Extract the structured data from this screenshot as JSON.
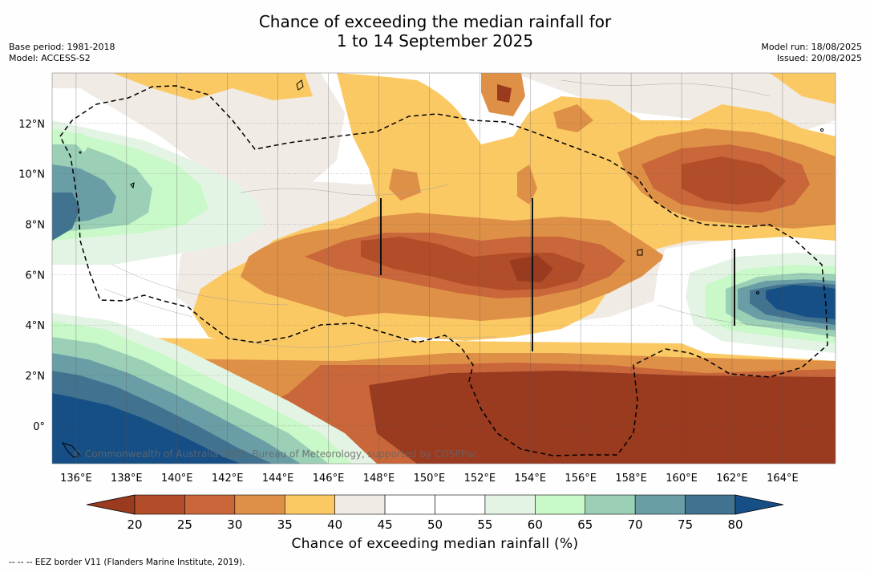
{
  "header": {
    "title_line1": "Chance of exceeding the median rainfall for",
    "title_line2": "1 to 14 September 2025",
    "base_period": "Base period: 1981-2018",
    "model": "Model: ACCESS-S2",
    "model_run": "Model run: 18/08/2025",
    "issued": "Issued: 20/08/2025"
  },
  "map": {
    "lon_labels": [
      "136°E",
      "138°E",
      "140°E",
      "142°E",
      "144°E",
      "146°E",
      "148°E",
      "150°E",
      "152°E",
      "154°E",
      "156°E",
      "158°E",
      "160°E",
      "162°E",
      "164°E"
    ],
    "lon_values": [
      136,
      138,
      140,
      142,
      144,
      146,
      148,
      150,
      152,
      154,
      156,
      158,
      160,
      162,
      164
    ],
    "lat_labels": [
      "12°N",
      "10°N",
      "8°N",
      "6°N",
      "4°N",
      "2°N",
      "0°"
    ],
    "lat_values": [
      12,
      10,
      8,
      6,
      4,
      2,
      0
    ],
    "lon_range": [
      135.05,
      166.1
    ],
    "lat_range": [
      -1.5,
      14.0
    ],
    "copyright": "© Commonwealth of Australia 2025, Bureau of Meteorology, supported by COSPPac",
    "region_values": {
      "west_wet_core": 80,
      "southwest_wet": 75,
      "east_wet_core": 80,
      "south_dry_core": 20,
      "central_dry_band": 25,
      "northeast_dry": 25
    }
  },
  "colorbar": {
    "tick_labels": [
      "20",
      "25",
      "30",
      "35",
      "40",
      "45",
      "50",
      "55",
      "60",
      "65",
      "70",
      "75",
      "80"
    ],
    "colors": [
      "#9a3a1f",
      "#b14d28",
      "#c9663a",
      "#df9047",
      "#fbc964",
      "#f0ebe5",
      "#ffffff",
      "#ffffff",
      "#e4f4e4",
      "#c9f8c9",
      "#9bd0b7",
      "#6a9ea6",
      "#41728f",
      "#154f86"
    ],
    "title": "Chance of exceeding median rainfall (%)"
  },
  "footer": {
    "legend_text": "-- -- -- EEZ border V11 (Flanders Marine Institute, 2019)."
  }
}
